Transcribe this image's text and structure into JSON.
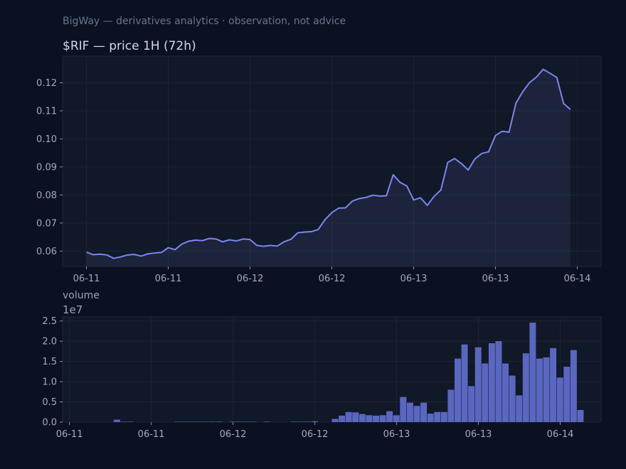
{
  "header": {
    "caption": "BigWay — derivatives analytics · observation, not advice"
  },
  "chart_data": [
    {
      "type": "line",
      "title": "$RIF — price 1H (72h)",
      "xlabel": "",
      "ylabel": "",
      "x_tick_labels": [
        "06-11",
        "06-11",
        "06-12",
        "06-12",
        "06-13",
        "06-13",
        "06-14"
      ],
      "y_ticks": [
        0.06,
        0.07,
        0.08,
        0.09,
        0.1,
        0.11,
        0.12
      ],
      "y_tick_labels": [
        "0.06",
        "0.07",
        "0.08",
        "0.09",
        "0.10",
        "0.11",
        "0.12"
      ],
      "xlim": [
        -3.5,
        75.5
      ],
      "ylim": [
        0.0545,
        0.1295
      ],
      "grid": true,
      "color": "#7b86f0",
      "series": [
        {
          "values": [
            0.0596,
            0.0587,
            0.0589,
            0.0586,
            0.0574,
            0.0579,
            0.0586,
            0.0588,
            0.0582,
            0.059,
            0.0593,
            0.0595,
            0.0612,
            0.0605,
            0.0625,
            0.0635,
            0.0639,
            0.0637,
            0.0645,
            0.0643,
            0.0633,
            0.064,
            0.0636,
            0.0643,
            0.0641,
            0.062,
            0.0617,
            0.062,
            0.0618,
            0.0633,
            0.0642,
            0.0665,
            0.0668,
            0.0669,
            0.0677,
            0.0712,
            0.0737,
            0.0753,
            0.0754,
            0.0778,
            0.0787,
            0.0791,
            0.0799,
            0.0796,
            0.0797,
            0.0872,
            0.0845,
            0.0832,
            0.0782,
            0.079,
            0.0763,
            0.0795,
            0.0818,
            0.0916,
            0.093,
            0.0912,
            0.0889,
            0.0929,
            0.0948,
            0.0954,
            0.1012,
            0.1027,
            0.1024,
            0.1127,
            0.1168,
            0.1201,
            0.122,
            0.1248,
            0.1234,
            0.1219,
            0.1126,
            0.1105
          ]
        }
      ]
    },
    {
      "type": "bar",
      "title": "volume",
      "xlabel": "",
      "ylabel": "",
      "y_offset_label": "1e7",
      "x_tick_labels": [
        "06-11",
        "06-11",
        "06-12",
        "06-12",
        "06-13",
        "06-13",
        "06-14"
      ],
      "y_ticks": [
        0,
        0.5,
        1.0,
        1.5,
        2.0,
        2.5
      ],
      "y_tick_labels": [
        "0.0",
        "0.5",
        "1.0",
        "1.5",
        "2.0",
        "2.5"
      ],
      "xlim": [
        -1,
        78
      ],
      "ylim": [
        0,
        2.6
      ],
      "grid": true,
      "color": "#5f6bc8",
      "values": [
        0,
        0,
        0,
        0,
        0,
        0,
        0,
        0.06,
        0.01,
        0.01,
        0,
        0,
        0,
        0,
        0,
        0,
        0.01,
        0.01,
        0.01,
        0.01,
        0.01,
        0.01,
        0.01,
        0,
        0.01,
        0.01,
        0.01,
        0.01,
        0,
        0.01,
        0,
        0,
        0,
        0.01,
        0.01,
        0.01,
        0.02,
        0,
        0,
        0.08,
        0.16,
        0.25,
        0.24,
        0.2,
        0.17,
        0.16,
        0.17,
        0.27,
        0.17,
        0.62,
        0.48,
        0.4,
        0.48,
        0.21,
        0.25,
        0.25,
        0.8,
        1.57,
        1.92,
        0.89,
        1.85,
        1.45,
        1.95,
        2.0,
        1.45,
        1.15,
        0.66,
        1.7,
        2.46,
        1.57,
        1.6,
        1.83,
        1.1,
        1.37,
        1.78,
        0.3
      ]
    }
  ]
}
